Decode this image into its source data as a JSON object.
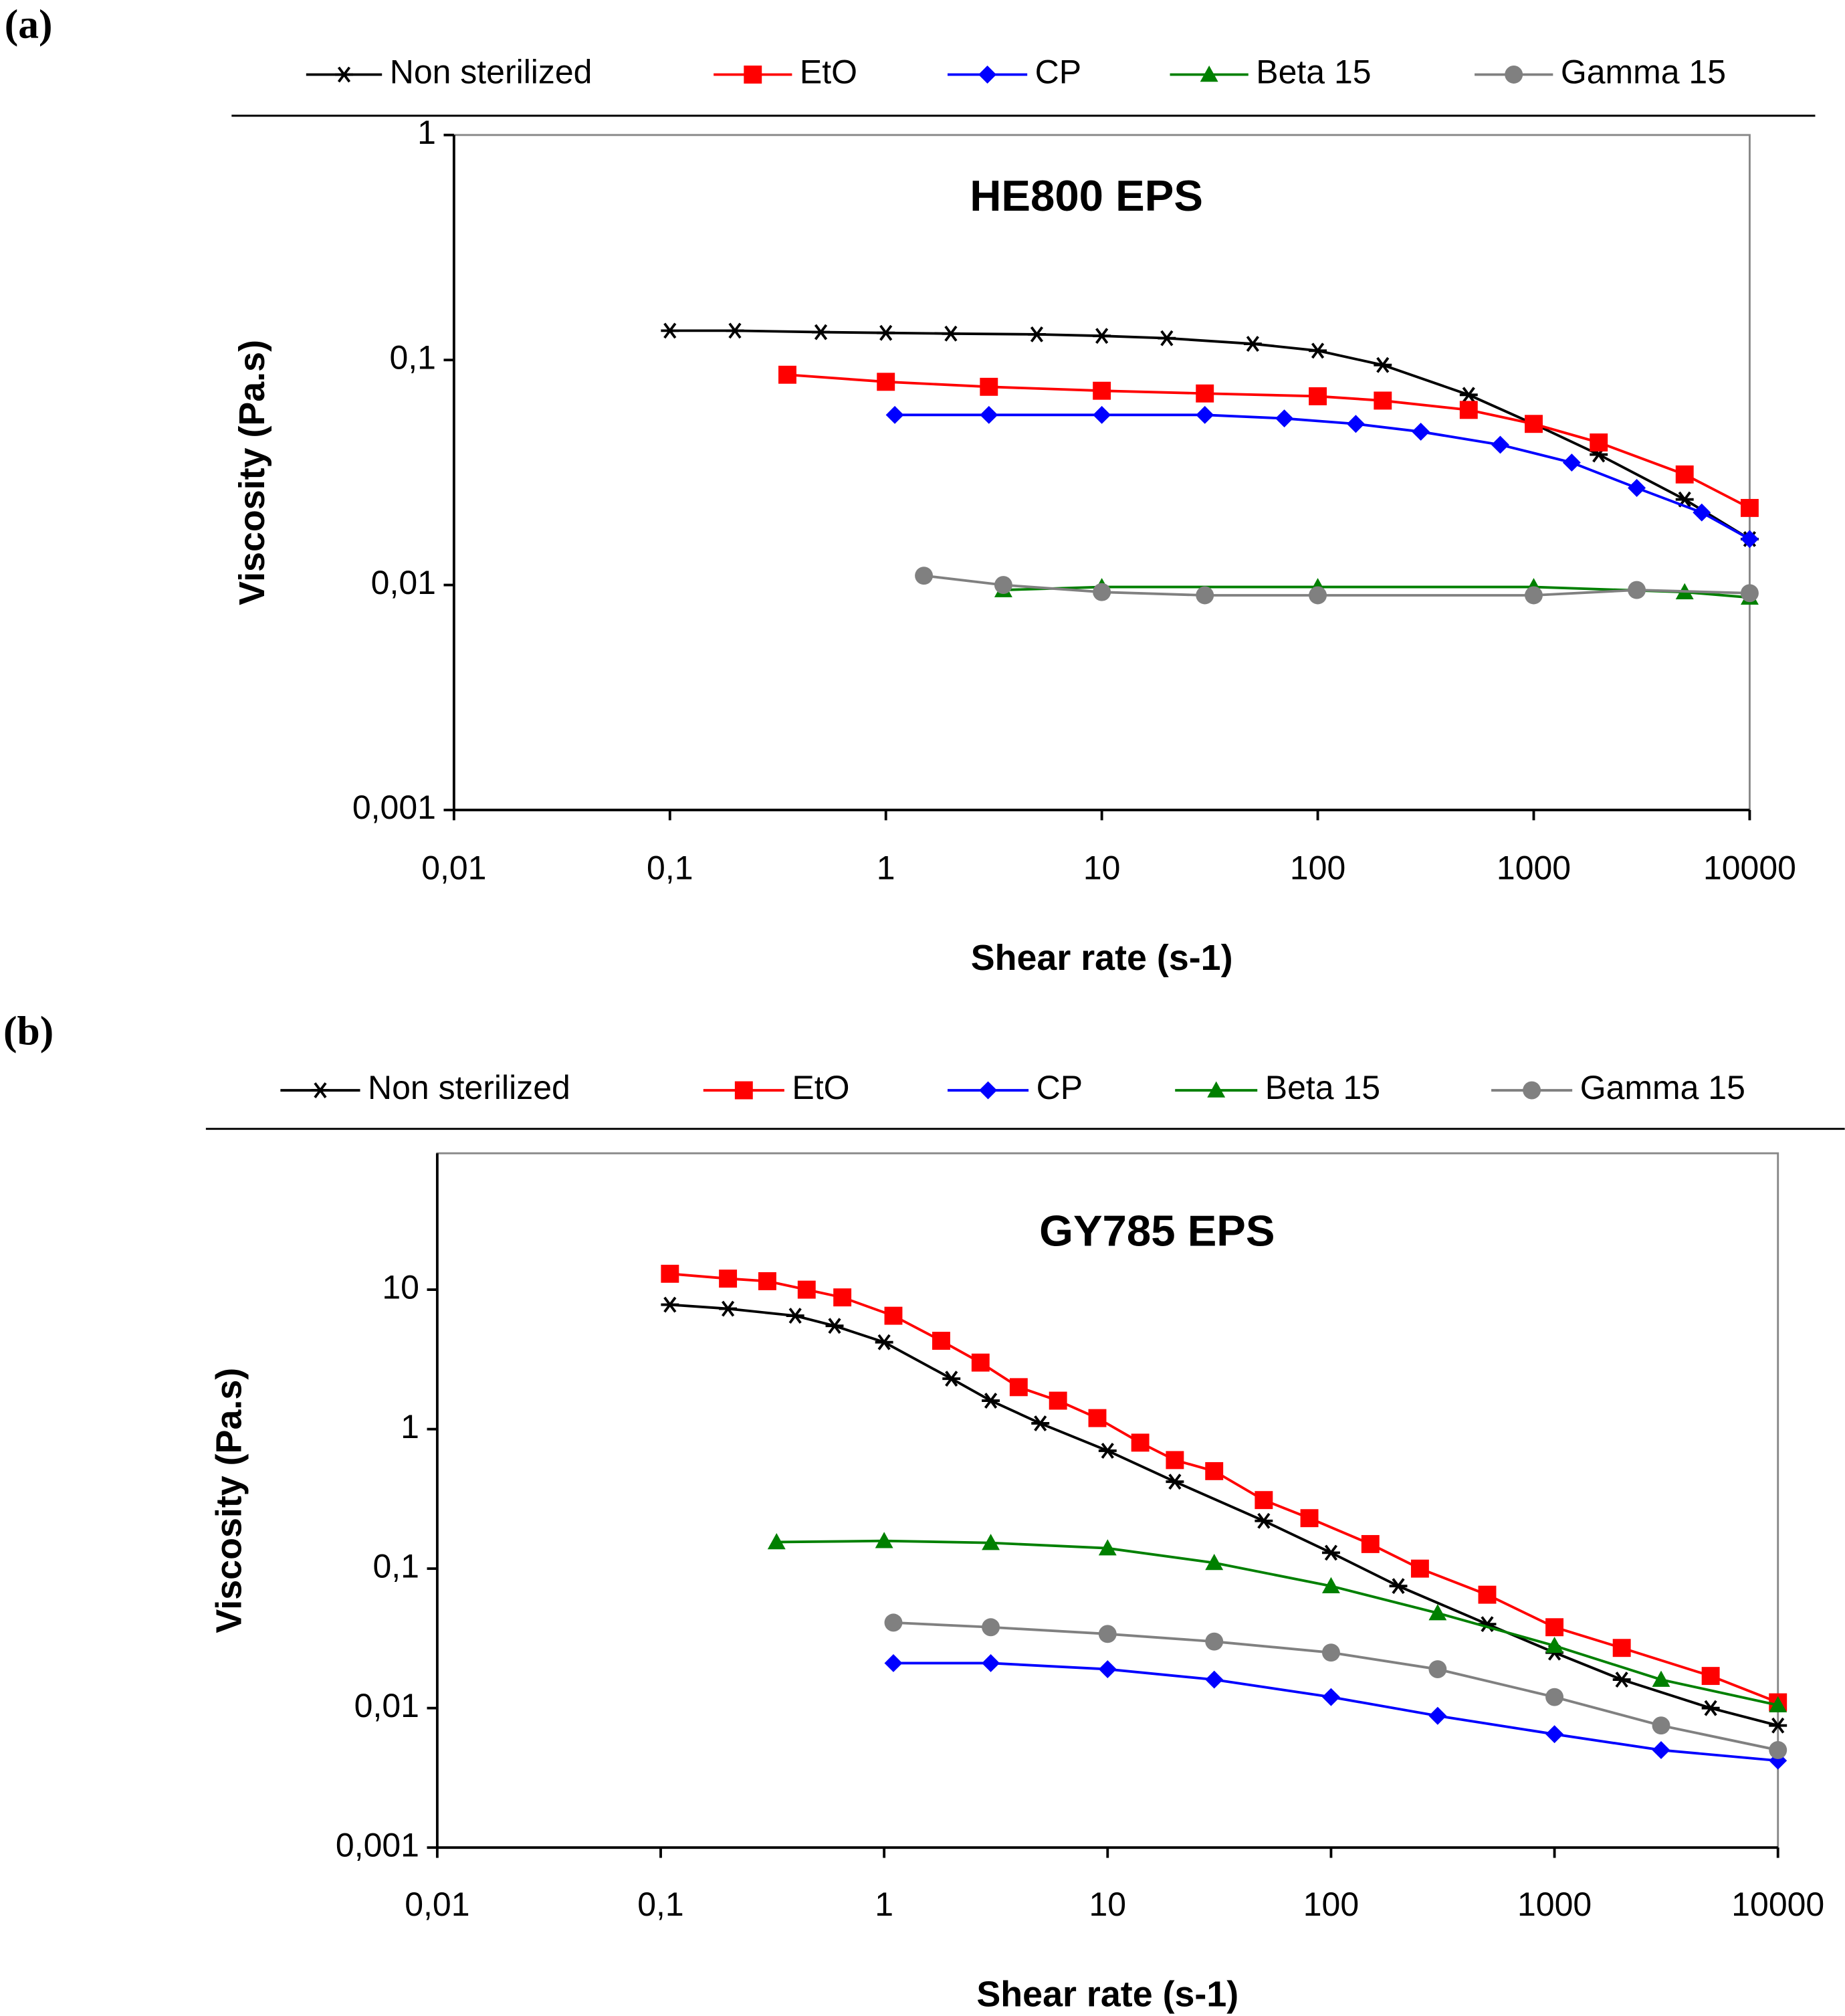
{
  "chart_data": [
    {
      "type": "line",
      "panel_label": "(a)",
      "title": "HE800 EPS",
      "x_label": "Shear rate (s-1)",
      "y_label": "Viscosity (Pa.s)",
      "x_log": true,
      "y_log": true,
      "legend": "top",
      "xlim": [
        0.01,
        10000
      ],
      "ylim": [
        0.001,
        1
      ],
      "xticks": [
        {
          "value": 0.01,
          "label": "0,01"
        },
        {
          "value": 0.1,
          "label": "0,1"
        },
        1,
        10,
        100,
        1000,
        10000
      ],
      "yticks": [
        {
          "value": 0.001,
          "label": "0,001"
        },
        {
          "value": 0.01,
          "label": "0,01"
        },
        {
          "value": 0.1,
          "label": "0,1"
        },
        1
      ],
      "series": [
        {
          "name": "Non sterilized",
          "color": "#000000",
          "marker": "star",
          "x": [
            0.1,
            0.2,
            0.5,
            1,
            2,
            5,
            10,
            20,
            50,
            100,
            200,
            500,
            1000,
            2000,
            5000,
            10000
          ],
          "values": [
            0.135,
            0.135,
            0.133,
            0.132,
            0.131,
            0.13,
            0.128,
            0.125,
            0.118,
            0.11,
            0.095,
            0.07,
            0.052,
            0.038,
            0.024,
            0.016
          ]
        },
        {
          "name": "EtO",
          "color": "#ff0000",
          "marker": "square",
          "x": [
            0.35,
            1,
            3,
            10,
            30,
            100,
            200,
            500,
            1000,
            2000,
            5000,
            10000
          ],
          "values": [
            0.086,
            0.08,
            0.076,
            0.073,
            0.071,
            0.069,
            0.066,
            0.06,
            0.052,
            0.043,
            0.031,
            0.022
          ]
        },
        {
          "name": "CP",
          "color": "#0000ff",
          "marker": "diamond",
          "x": [
            1.1,
            3,
            10,
            30,
            70,
            150,
            300,
            700,
            1500,
            3000,
            6000,
            10000
          ],
          "values": [
            0.057,
            0.057,
            0.057,
            0.057,
            0.055,
            0.052,
            0.048,
            0.042,
            0.035,
            0.027,
            0.021,
            0.016
          ]
        },
        {
          "name": "Beta 15",
          "color": "#008000",
          "marker": "triangle",
          "x": [
            3.5,
            10,
            100,
            1000,
            5000,
            10000
          ],
          "values": [
            0.0095,
            0.0098,
            0.0098,
            0.0098,
            0.0093,
            0.0088
          ]
        },
        {
          "name": "Gamma 15",
          "color": "#808080",
          "marker": "circle",
          "x": [
            1.5,
            3.5,
            10,
            30,
            100,
            1000,
            3000,
            10000
          ],
          "values": [
            0.011,
            0.01,
            0.0093,
            0.009,
            0.009,
            0.009,
            0.0095,
            0.0092
          ]
        }
      ]
    },
    {
      "type": "line",
      "panel_label": "(b)",
      "title": "GY785 EPS",
      "x_label": "Shear rate (s-1)",
      "y_label": "Viscosity (Pa.s)",
      "x_log": true,
      "y_log": true,
      "legend": "top",
      "xlim": [
        0.01,
        10000
      ],
      "ylim": [
        0.001,
        95
      ],
      "xticks": [
        {
          "value": 0.01,
          "label": "0,01"
        },
        {
          "value": 0.1,
          "label": "0,1"
        },
        1,
        10,
        100,
        1000,
        10000
      ],
      "yticks": [
        {
          "value": 0.001,
          "label": "0,001"
        },
        {
          "value": 0.01,
          "label": "0,01"
        },
        {
          "value": 0.1,
          "label": "0,1"
        },
        1,
        10
      ],
      "series": [
        {
          "name": "Non sterilized",
          "color": "#000000",
          "marker": "star",
          "x": [
            0.11,
            0.2,
            0.4,
            0.6,
            1,
            2,
            3,
            5,
            10,
            20,
            50,
            100,
            200,
            500,
            1000,
            2000,
            5000,
            10000
          ],
          "values": [
            7.8,
            7.3,
            6.5,
            5.5,
            4.2,
            2.3,
            1.6,
            1.1,
            0.7,
            0.42,
            0.22,
            0.13,
            0.075,
            0.04,
            0.025,
            0.016,
            0.01,
            0.0075
          ]
        },
        {
          "name": "EtO",
          "color": "#ff0000",
          "marker": "square",
          "x": [
            0.11,
            0.2,
            0.3,
            0.45,
            0.65,
            1.1,
            1.8,
            2.7,
            4,
            6,
            9,
            14,
            20,
            30,
            50,
            80,
            150,
            250,
            500,
            1000,
            2000,
            5000,
            10000
          ],
          "values": [
            13,
            12,
            11.5,
            10,
            8.8,
            6.5,
            4.3,
            3,
            2,
            1.6,
            1.2,
            0.8,
            0.6,
            0.5,
            0.31,
            0.23,
            0.15,
            0.1,
            0.065,
            0.038,
            0.027,
            0.017,
            0.011
          ]
        },
        {
          "name": "CP",
          "color": "#0000ff",
          "marker": "diamond",
          "x": [
            1.1,
            3,
            10,
            30,
            100,
            300,
            1000,
            3000,
            10000
          ],
          "values": [
            0.021,
            0.021,
            0.019,
            0.016,
            0.012,
            0.0088,
            0.0065,
            0.005,
            0.0042
          ]
        },
        {
          "name": "Beta 15",
          "color": "#008000",
          "marker": "triangle",
          "x": [
            0.33,
            1,
            3,
            10,
            30,
            100,
            300,
            1000,
            3000,
            10000
          ],
          "values": [
            0.155,
            0.158,
            0.153,
            0.14,
            0.11,
            0.075,
            0.048,
            0.028,
            0.016,
            0.0105
          ]
        },
        {
          "name": "Gamma 15",
          "color": "#808080",
          "marker": "circle",
          "x": [
            1.1,
            3,
            10,
            30,
            100,
            300,
            1000,
            3000,
            10000
          ],
          "values": [
            0.041,
            0.038,
            0.034,
            0.03,
            0.025,
            0.019,
            0.012,
            0.0075,
            0.005
          ]
        }
      ]
    }
  ]
}
